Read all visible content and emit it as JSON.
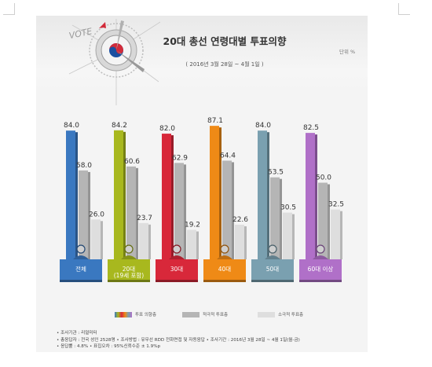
{
  "header": {
    "title": "20대 총선 연령대별 투표의향",
    "unit": "단위 %",
    "period": "( 2016년 3월 28일 ~ 4월 1일 )",
    "logo_text": "VOTE"
  },
  "legend": {
    "items": [
      {
        "label": "투표 의향층",
        "color": "#e07a2a"
      },
      {
        "label": "적극적 투표층",
        "color": "#b5b5b5"
      },
      {
        "label": "소극적 투표층",
        "color": "#dedede"
      }
    ]
  },
  "notes": [
    "• 조사기관 : 리얼미터",
    "• 총응답자 : 전국 성인 2528명   • 조사방법 : 유무선 RDD 전화면접 및 자동응답   • 조사기간 : 2016년 3월 28일 ~ 4월 1일(월-금)",
    "• 응답률 : 4.8%   • 표집오차 : 95%신뢰수준 ± 1.9%p"
  ],
  "chart_data": {
    "type": "bar",
    "title": "20대 총선 연령대별 투표의향",
    "categories": [
      "전체",
      "20대",
      "30대",
      "40대",
      "50대",
      "60대 이상"
    ],
    "category_sublabels": [
      "",
      "(19세 포함)",
      "",
      "",
      "",
      ""
    ],
    "category_colors": [
      "#3a78c0",
      "#a8b81e",
      "#d8283a",
      "#ef8a16",
      "#7aa0b0",
      "#b070c8"
    ],
    "series": [
      {
        "name": "투표 의향층",
        "values": [
          84.0,
          84.2,
          82.0,
          87.1,
          84.0,
          82.5
        ]
      },
      {
        "name": "적극적 투표층",
        "values": [
          58.0,
          60.6,
          62.9,
          64.4,
          53.5,
          50.0
        ]
      },
      {
        "name": "소극적 투표층",
        "values": [
          26.0,
          23.7,
          19.2,
          22.6,
          30.5,
          32.5
        ]
      }
    ],
    "value_labels": [
      [
        "84.0",
        "84.2",
        "82.0",
        "87.1",
        "84.0",
        "82.5"
      ],
      [
        "58.0",
        "60.6",
        "62.9",
        "64.4",
        "53.5",
        "50.0"
      ],
      [
        "26.0",
        "23.7",
        "19.2",
        "22.6",
        "30.5",
        "32.5"
      ]
    ],
    "ylim": [
      0,
      100
    ],
    "grid": false,
    "legend_position": "bottom"
  }
}
